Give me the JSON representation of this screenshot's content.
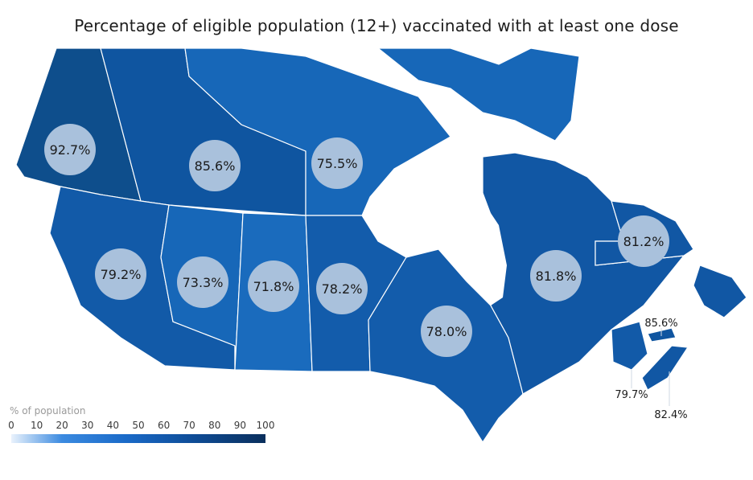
{
  "title": "Percentage of eligible population (12+) vaccinated with at least one dose",
  "regions": [
    {
      "name": "Yukon",
      "value": "92.7%",
      "color": "#0e4e8c"
    },
    {
      "name": "Northwest Territories",
      "value": "85.6%",
      "color": "#0f55a0"
    },
    {
      "name": "Nunavut",
      "value": "75.5%",
      "color": "#1767b8"
    },
    {
      "name": "British Columbia",
      "value": "79.2%",
      "color": "#125aa8"
    },
    {
      "name": "Alberta",
      "value": "73.3%",
      "color": "#1767b8"
    },
    {
      "name": "Saskatchewan",
      "value": "71.8%",
      "color": "#1a6bbd"
    },
    {
      "name": "Manitoba",
      "value": "78.2%",
      "color": "#135cab"
    },
    {
      "name": "Ontario",
      "value": "78.0%",
      "color": "#135cab"
    },
    {
      "name": "Quebec",
      "value": "81.8%",
      "color": "#1157a4"
    },
    {
      "name": "Newfoundland and Labrador",
      "value": "81.2%",
      "color": "#1157a4"
    },
    {
      "name": "Prince Edward Island",
      "value": "85.6%",
      "color": "#0f55a0"
    },
    {
      "name": "New Brunswick",
      "value": "79.7%",
      "color": "#125aa8"
    },
    {
      "name": "Nova Scotia",
      "value": "82.4%",
      "color": "#1157a4"
    }
  ],
  "legend": {
    "title": "% of population",
    "ticks": [
      "0",
      "10",
      "20",
      "30",
      "40",
      "50",
      "60",
      "70",
      "80",
      "90",
      "100"
    ],
    "scale_min": 0,
    "scale_max": 100
  },
  "colors": {
    "badge_fill": "#a9c1dc",
    "border": "#ffffff"
  }
}
